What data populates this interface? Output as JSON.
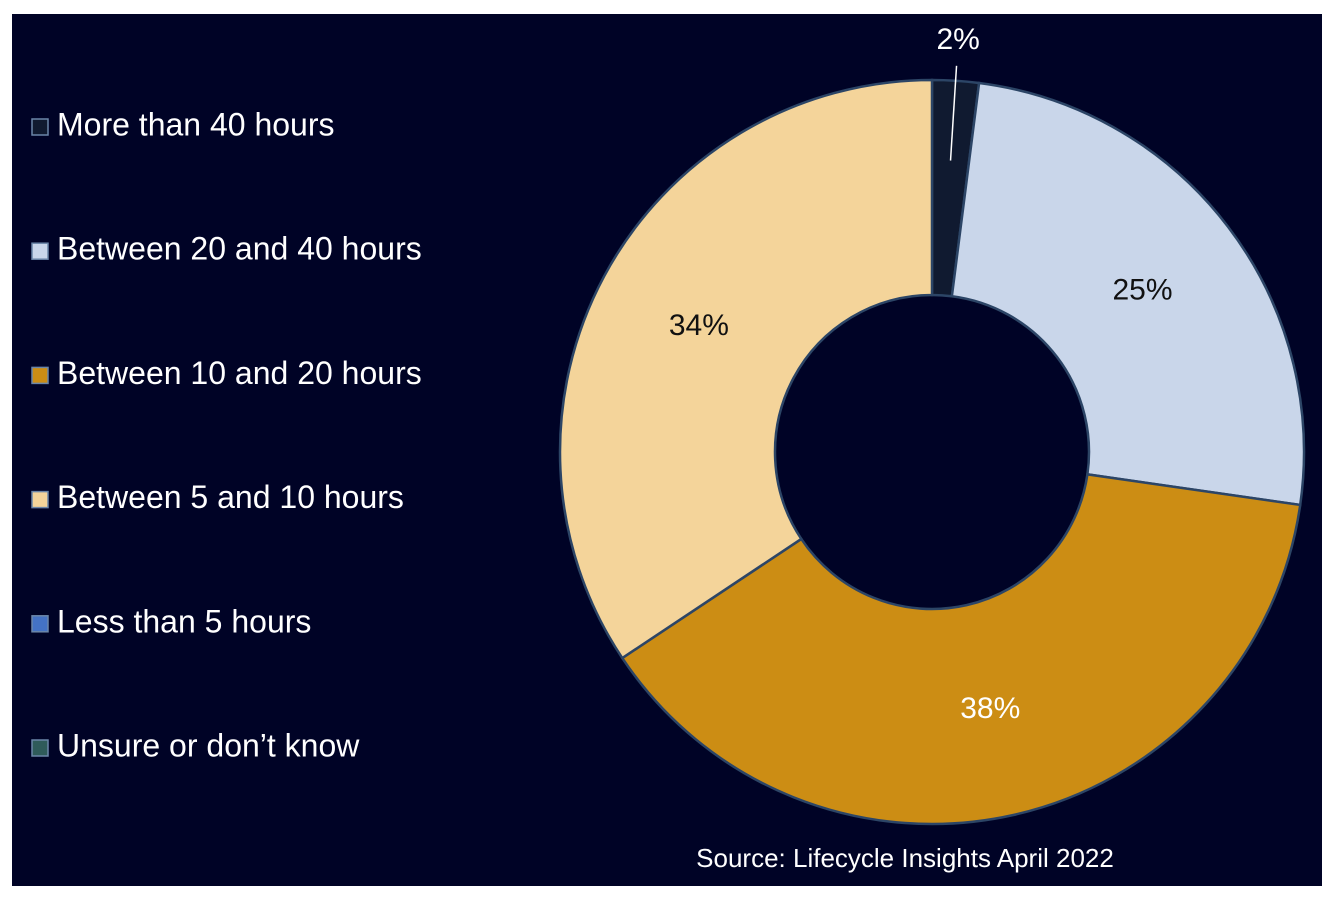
{
  "chart_data": {
    "type": "donut",
    "categories": [
      "More than 40 hours",
      "Between 20 and 40 hours",
      "Between 10 and 20 hours",
      "Between 5 and 10 hours",
      "Less than 5 hours",
      "Unsure or don’t know"
    ],
    "values": [
      2,
      25,
      38,
      34,
      0,
      0
    ],
    "value_labels": [
      "2%",
      "25%",
      "38%",
      "34%",
      null,
      null
    ],
    "colors": [
      "#101a30",
      "#c9d6ea",
      "#cc8d14",
      "#f4d49a",
      "#4472c4",
      "#2f5b5a"
    ],
    "legend": "left",
    "source": "Source: Lifecycle Insights April 2022"
  }
}
